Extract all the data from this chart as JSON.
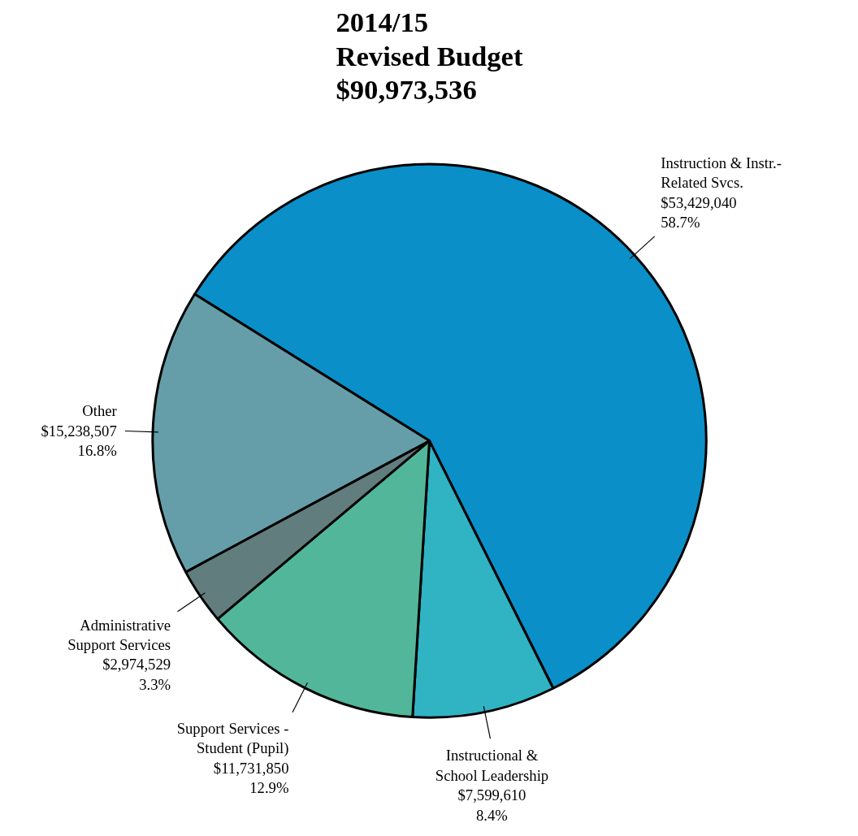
{
  "chart_data": {
    "type": "pie",
    "title": "2014/15\nRevised Budget\n$90,973,536",
    "categories": [
      "Instruction & Instr.-\nRelated Svcs.",
      "Instructional &\nSchool Leadership",
      "Support Services -\nStudent (Pupil)",
      "Administrative\nSupport Services",
      "Other"
    ],
    "values": [
      53429040,
      7599610,
      11731850,
      2974529,
      15238507
    ],
    "value_labels": [
      "$53,429,040\n58.7%",
      "$7,599,610\n8.4%",
      "$11,731,850\n12.9%",
      "$2,974,529\n3.3%",
      "$15,238,507\n16.8%"
    ],
    "colors": [
      "#0a8fc8",
      "#30b3c3",
      "#52b79a",
      "#627d7d",
      "#659ea9"
    ]
  }
}
